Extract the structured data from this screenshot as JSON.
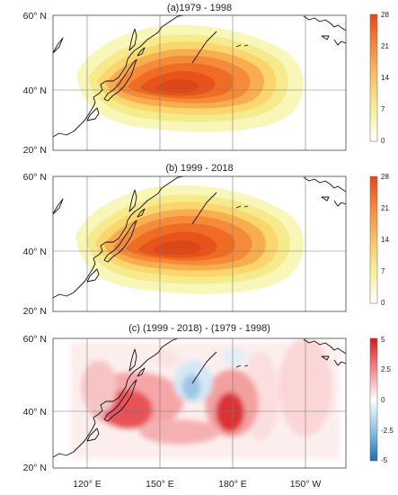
{
  "panels": [
    {
      "id": "a",
      "title": "(a)1979 - 1998",
      "colormap": "yellow-orange",
      "colorbar": {
        "ticks": [
          "28",
          "21",
          "14",
          "7",
          "0"
        ]
      }
    },
    {
      "id": "b",
      "title": "(b) 1999 - 2018",
      "colormap": "yellow-orange",
      "colorbar": {
        "ticks": [
          "28",
          "21",
          "14",
          "7",
          "0"
        ]
      }
    },
    {
      "id": "c",
      "title": "(c) (1999 - 2018) - (1979 - 1998)",
      "colormap": "blue-white-red",
      "colorbar": {
        "ticks": [
          "5",
          "2.5",
          "0",
          "-2.5",
          "-5"
        ]
      }
    }
  ],
  "y_ticks": [
    "60° N",
    "40° N",
    "20° N"
  ],
  "x_ticks": [
    "120° E",
    "150° E",
    "180° E",
    "150° W"
  ],
  "colors": {
    "seq_low": "#fbfbcf",
    "seq_mid": "#fbd070",
    "seq_high": "#ee5a18",
    "div_neg": "#2166ac",
    "div_pos": "#d41a1f"
  }
}
